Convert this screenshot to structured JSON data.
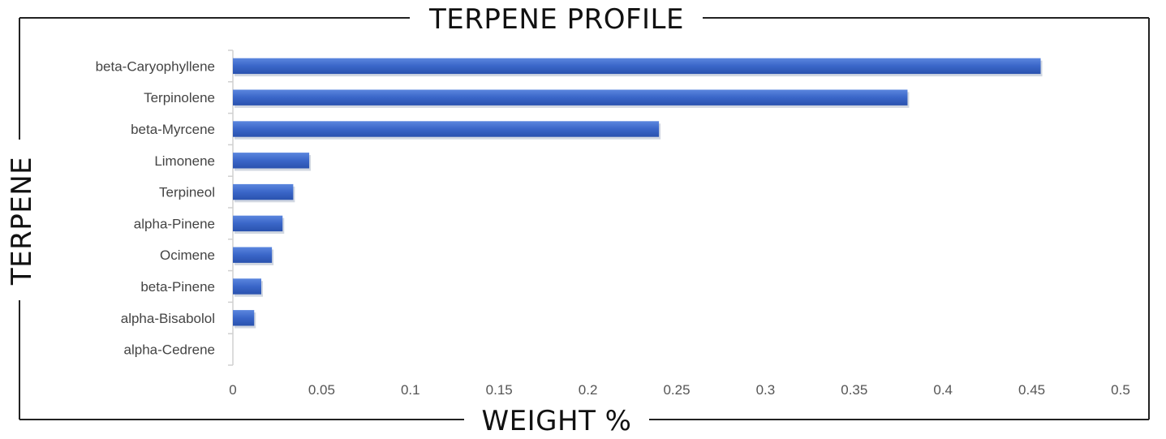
{
  "chart_data": {
    "type": "bar",
    "orientation": "horizontal",
    "title": "TERPENE PROFILE",
    "xlabel": "WEIGHT %",
    "ylabel": "TERPENE",
    "categories": [
      "beta-Caryophyllene",
      "Terpinolene",
      "beta-Myrcene",
      "Limonene",
      "Terpineol",
      "alpha-Pinene",
      "Ocimene",
      "beta-Pinene",
      "alpha-Bisabolol",
      "alpha-Cedrene"
    ],
    "values": [
      0.455,
      0.38,
      0.24,
      0.043,
      0.034,
      0.028,
      0.022,
      0.016,
      0.012,
      0
    ],
    "xlim": [
      0,
      0.5
    ],
    "xticks": [
      "0",
      "0.05",
      "0.1",
      "0.15",
      "0.2",
      "0.25",
      "0.3",
      "0.35",
      "0.4",
      "0.45",
      "0.5"
    ],
    "grid": false,
    "legend": "none",
    "bar_color": "#3A66C8"
  }
}
